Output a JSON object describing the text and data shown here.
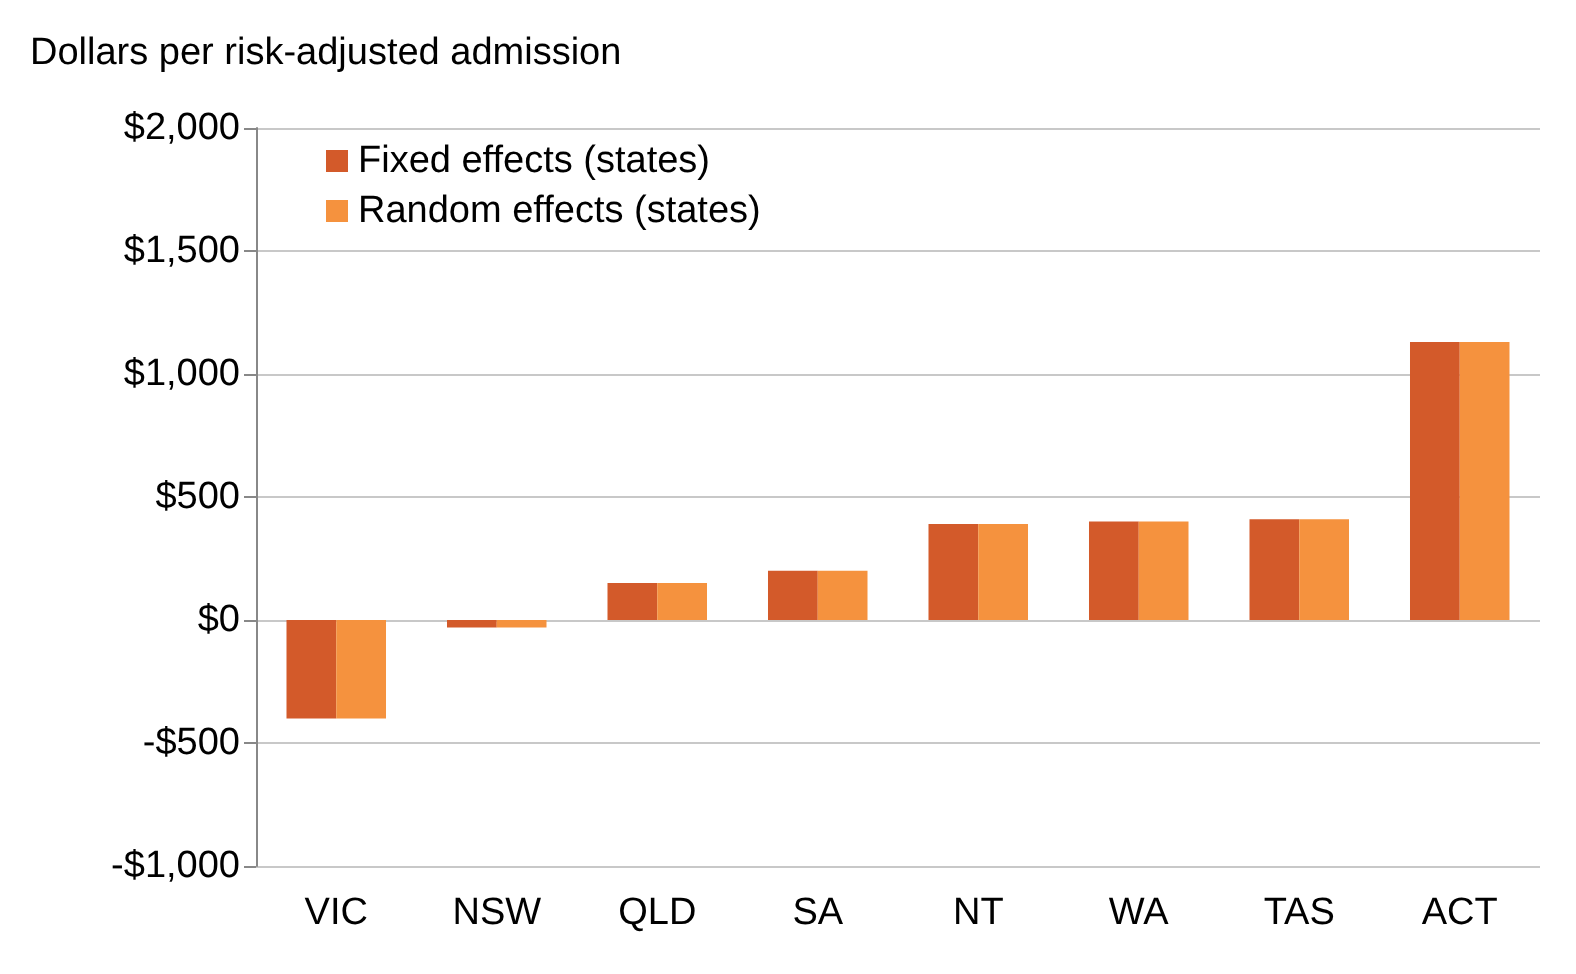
{
  "chart_data": {
    "type": "bar",
    "ylabel": "Dollars per risk-adjusted admission",
    "categories": [
      "VIC",
      "NSW",
      "QLD",
      "SA",
      "NT",
      "WA",
      "TAS",
      "ACT"
    ],
    "series": [
      {
        "name": "Fixed effects (states)",
        "color": "#d35a2a",
        "values": [
          -400,
          -30,
          150,
          200,
          390,
          400,
          410,
          1130
        ]
      },
      {
        "name": "Random effects (states)",
        "color": "#f5923e",
        "values": [
          -400,
          -30,
          150,
          200,
          390,
          400,
          410,
          1130
        ]
      }
    ],
    "ylim": [
      -1000,
      2000
    ],
    "yticks": [
      {
        "value": -1000,
        "label": "-$1,000"
      },
      {
        "value": -500,
        "label": "-$500"
      },
      {
        "value": 0,
        "label": "$0"
      },
      {
        "value": 500,
        "label": "$500"
      },
      {
        "value": 1000,
        "label": "$1,000"
      },
      {
        "value": 1500,
        "label": "$1,500"
      },
      {
        "value": 2000,
        "label": "$2,000"
      }
    ],
    "grid": "y",
    "legend": "top left"
  }
}
